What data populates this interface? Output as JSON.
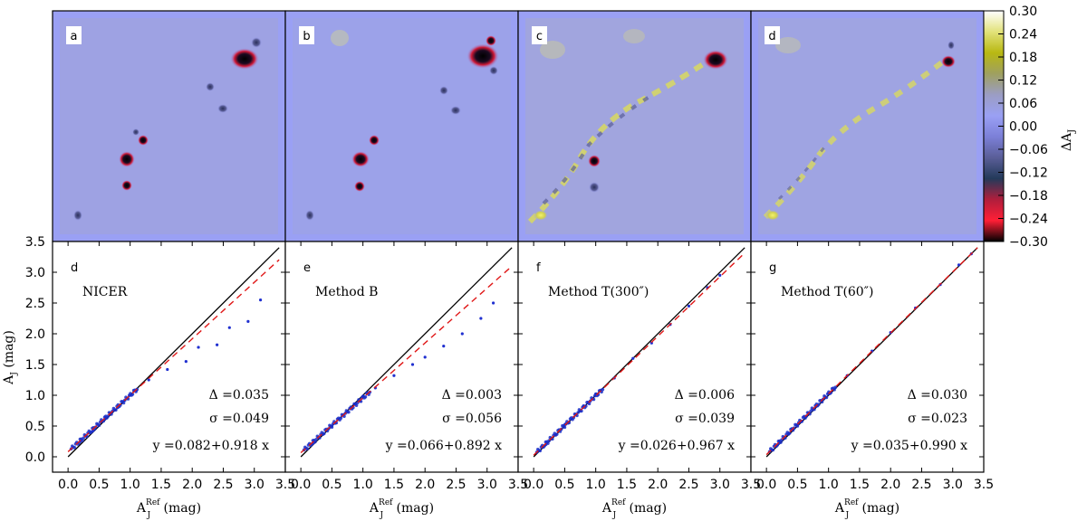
{
  "colorbar": {
    "label": "ΔA",
    "label_sub": "J",
    "ticks": [
      "0.30",
      "0.24",
      "0.18",
      "0.12",
      "0.06",
      "0.00",
      "−0.06",
      "−0.12",
      "−0.18",
      "−0.24",
      "−0.30"
    ],
    "stops": [
      "#ffffff",
      "#e2e27a",
      "#b8b812",
      "#9fa060",
      "#9b9dc4",
      "#9aa0f4",
      "#7c80d8",
      "#5a5e98",
      "#233a5a",
      "#b01e3c",
      "#ff1f36",
      "#000000"
    ]
  },
  "maps": [
    {
      "tag": "a"
    },
    {
      "tag": "b"
    },
    {
      "tag": "c"
    },
    {
      "tag": "d"
    }
  ],
  "chart_data": [
    {
      "type": "scatter",
      "tag": "d",
      "method": "NICER",
      "delta": "Δ =0.035",
      "sigma": "σ =0.049",
      "fit": "y =0.082+0.918 x",
      "fit_intercept": 0.082,
      "fit_slope": 0.918,
      "xlabel": "A",
      "xlabel_sub": "J",
      "xlabel_sup": "Ref",
      "xlabel_unit": "(mag)",
      "ylabel": "A",
      "ylabel_sub": "J",
      "ylabel_unit": "(mag)",
      "xlim": [
        -0.25,
        3.5
      ],
      "ylim": [
        -0.25,
        3.5
      ],
      "xticks": [
        "0.0",
        "0.5",
        "1.0",
        "1.5",
        "2.0",
        "2.5",
        "3.0",
        "3.5"
      ],
      "yticks": [
        "0.0",
        "0.5",
        "1.0",
        "1.5",
        "2.0",
        "2.5",
        "3.0",
        "3.5"
      ],
      "points": [
        [
          0.2,
          0.25
        ],
        [
          0.4,
          0.42
        ],
        [
          0.6,
          0.62
        ],
        [
          0.8,
          0.8
        ],
        [
          1.0,
          1.0
        ],
        [
          1.1,
          1.08
        ],
        [
          1.3,
          1.25
        ],
        [
          1.6,
          1.42
        ],
        [
          1.9,
          1.55
        ],
        [
          2.1,
          1.78
        ],
        [
          2.4,
          1.82
        ],
        [
          2.6,
          2.1
        ],
        [
          2.9,
          2.2
        ],
        [
          3.1,
          2.55
        ]
      ]
    },
    {
      "type": "scatter",
      "tag": "e",
      "method": "Method B",
      "delta": "Δ =0.003",
      "sigma": "σ =0.056",
      "fit": "y =0.066+0.892 x",
      "fit_intercept": 0.066,
      "fit_slope": 0.892,
      "xlabel": "A",
      "xlabel_sub": "J",
      "xlabel_sup": "Ref",
      "xlabel_unit": "(mag)",
      "xlim": [
        -0.25,
        3.5
      ],
      "ylim": [
        -0.25,
        3.5
      ],
      "xticks": [
        "0.0",
        "0.5",
        "1.0",
        "1.5",
        "2.0",
        "2.5",
        "3.0",
        "3.5"
      ],
      "points": [
        [
          0.2,
          0.22
        ],
        [
          0.5,
          0.5
        ],
        [
          0.8,
          0.78
        ],
        [
          1.0,
          0.98
        ],
        [
          1.2,
          1.12
        ],
        [
          1.5,
          1.32
        ],
        [
          1.8,
          1.5
        ],
        [
          2.0,
          1.62
        ],
        [
          2.3,
          1.8
        ],
        [
          2.6,
          2.0
        ],
        [
          2.9,
          2.25
        ],
        [
          3.1,
          2.5
        ]
      ]
    },
    {
      "type": "scatter",
      "tag": "f",
      "method": "Method T(300″)",
      "delta": "Δ =0.006",
      "sigma": "σ =0.039",
      "fit": "y =0.026+0.967 x",
      "fit_intercept": 0.026,
      "fit_slope": 0.967,
      "xlabel": "A",
      "xlabel_sub": "J",
      "xlabel_sup": "Ref",
      "xlabel_unit": "(mag)",
      "xlim": [
        -0.25,
        3.5
      ],
      "ylim": [
        -0.25,
        3.5
      ],
      "xticks": [
        "0.0",
        "0.5",
        "1.0",
        "1.5",
        "2.0",
        "2.5",
        "3.0",
        "3.5"
      ],
      "points": [
        [
          0.2,
          0.2
        ],
        [
          0.5,
          0.52
        ],
        [
          0.8,
          0.82
        ],
        [
          1.0,
          1.02
        ],
        [
          1.3,
          1.28
        ],
        [
          1.6,
          1.6
        ],
        [
          1.9,
          1.85
        ],
        [
          2.2,
          2.15
        ],
        [
          2.5,
          2.45
        ],
        [
          2.8,
          2.75
        ],
        [
          3.0,
          2.95
        ]
      ]
    },
    {
      "type": "scatter",
      "tag": "g",
      "method": "Method T(60″)",
      "delta": "Δ =0.030",
      "sigma": "σ =0.023",
      "fit": "y =0.035+0.990 x",
      "fit_intercept": 0.035,
      "fit_slope": 0.99,
      "xlabel": "A",
      "xlabel_sub": "J",
      "xlabel_sup": "Ref",
      "xlabel_unit": "(mag)",
      "xlim": [
        -0.25,
        3.5
      ],
      "ylim": [
        -0.25,
        3.5
      ],
      "xticks": [
        "0.0",
        "0.5",
        "1.0",
        "1.5",
        "2.0",
        "2.5",
        "3.0",
        "3.5"
      ],
      "points": [
        [
          0.2,
          0.22
        ],
        [
          0.5,
          0.52
        ],
        [
          0.8,
          0.82
        ],
        [
          1.0,
          1.03
        ],
        [
          1.3,
          1.32
        ],
        [
          1.7,
          1.72
        ],
        [
          2.0,
          2.02
        ],
        [
          2.4,
          2.42
        ],
        [
          2.8,
          2.8
        ],
        [
          3.1,
          3.12
        ],
        [
          3.3,
          3.3
        ]
      ]
    }
  ]
}
